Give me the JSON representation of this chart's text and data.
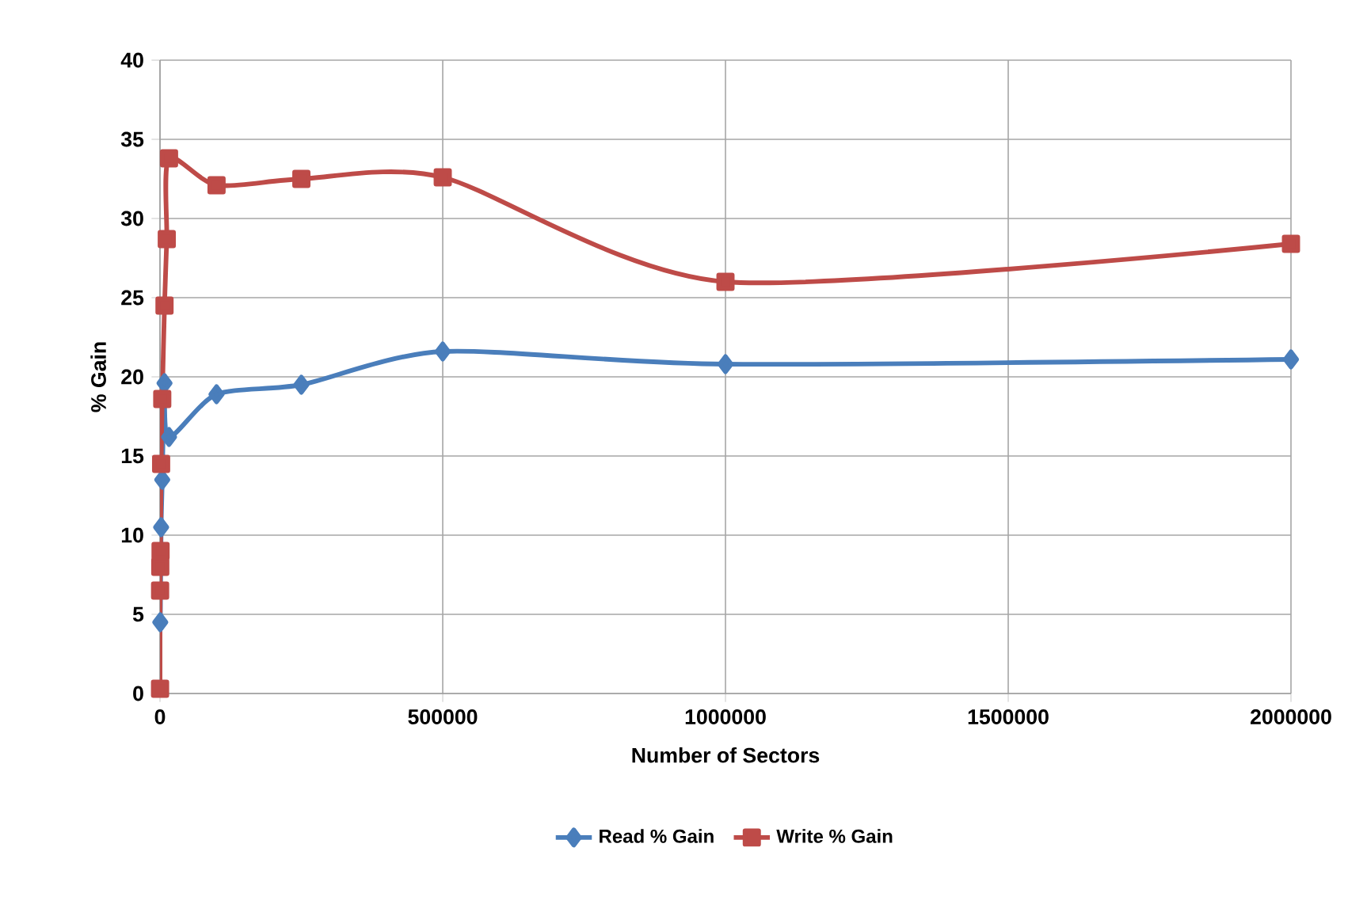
{
  "chart_data": {
    "type": "line",
    "xlabel": "Number of Sectors",
    "ylabel": "% Gain",
    "xlim": [
      0,
      2000000
    ],
    "xticks": [
      0,
      500000,
      1000000,
      1500000,
      2000000
    ],
    "ylim": [
      0,
      40
    ],
    "yticks": [
      0,
      5,
      10,
      15,
      20,
      25,
      30,
      35,
      40
    ],
    "grid": true,
    "legend": "bottom",
    "series": [
      {
        "name": "Read % Gain",
        "color": "#4a7ebb",
        "marker": "diamond",
        "x": [
          500,
          1000,
          2000,
          4000,
          8000,
          16000,
          100000,
          250000,
          500000,
          1000000,
          2000000
        ],
        "values": [
          4.5,
          null,
          10.5,
          13.5,
          19.6,
          16.2,
          18.9,
          19.5,
          21.6,
          20.8,
          21.1
        ]
      },
      {
        "name": "Write % Gain",
        "color": "#be4b48",
        "marker": "square",
        "x": [
          100,
          200,
          500,
          1000,
          2000,
          4000,
          8000,
          12000,
          16000,
          100000,
          250000,
          500000,
          1000000,
          2000000
        ],
        "values": [
          0.3,
          6.5,
          8,
          9,
          14.5,
          18.6,
          24.5,
          28.7,
          33.8,
          32.1,
          32.5,
          32.6,
          26,
          28.4
        ]
      }
    ]
  }
}
